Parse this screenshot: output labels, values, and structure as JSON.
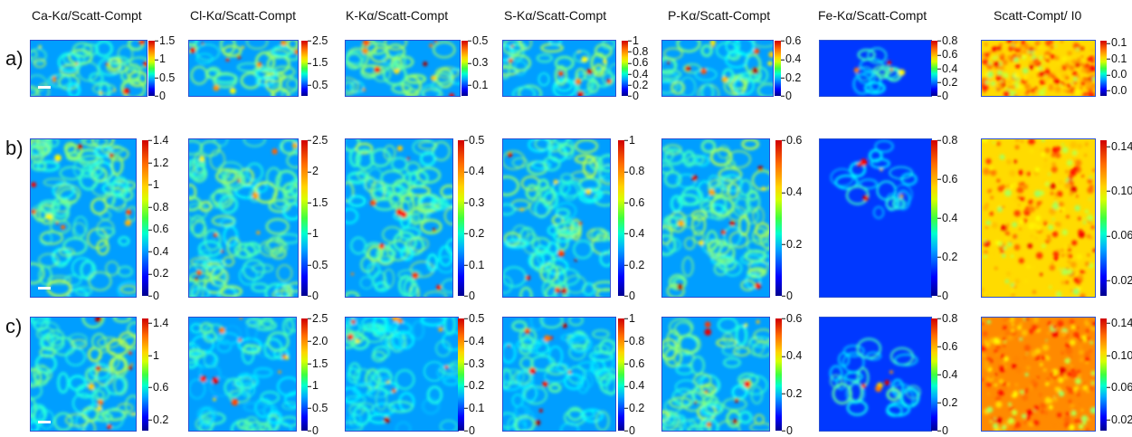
{
  "columns": [
    {
      "title": "Ca-Kα/Scatt-Compt"
    },
    {
      "title": "Cl-Kα/Scatt-Compt"
    },
    {
      "title": "K-Kα/Scatt-Compt"
    },
    {
      "title": "S-Kα/Scatt-Compt"
    },
    {
      "title": "P-Kα/Scatt-Compt"
    },
    {
      "title": "Fe-Kα/Scatt-Compt"
    },
    {
      "title": "Scatt-Compt/ I0"
    }
  ],
  "rows": [
    {
      "label": "a)"
    },
    {
      "label": "b)"
    },
    {
      "label": "c)"
    }
  ],
  "colorbars": [
    [
      [
        "1.5",
        "1",
        "0.5",
        "0"
      ],
      [
        "2.5",
        "1.5",
        "0.5"
      ],
      [
        "0.5",
        "0.3",
        "0.1"
      ],
      [
        "1",
        "0.8",
        "0.6",
        "0.4",
        "0.2",
        "0"
      ],
      [
        "0.6",
        "0.4",
        "0.2",
        "0"
      ],
      [
        "0.8",
        "0.6",
        "0.4",
        "0.2",
        "0"
      ],
      [
        "0.1",
        "0.1",
        "0.0",
        "0.0"
      ]
    ],
    [
      [
        "1.4",
        "1.2",
        "1",
        "0.8",
        "0.6",
        "0.4",
        "0.2",
        "0"
      ],
      [
        "2.5",
        "2",
        "1.5",
        "1",
        "0.5",
        "0"
      ],
      [
        "0.5",
        "0.4",
        "0.3",
        "0.2",
        "0.1",
        "0"
      ],
      [
        "1",
        "0.8",
        "0.6",
        "0.4",
        "0.2",
        "0"
      ],
      [
        "0.6",
        "0.4",
        "0.2",
        "0"
      ],
      [
        "0.8",
        "0.6",
        "0.4",
        "0.2",
        "0"
      ],
      [
        "0.14",
        "0.10",
        "0.06",
        "0.02"
      ]
    ],
    [
      [
        "1.4",
        "1",
        "0.6",
        "0.2"
      ],
      [
        "2.5",
        "2.0",
        "1.5",
        "1",
        "0.5",
        "0"
      ],
      [
        "0.5",
        "0.4",
        "0.3",
        "0.2",
        "0.1",
        "0"
      ],
      [
        "1",
        "0.8",
        "0.6",
        "0.4",
        "0.2",
        "0"
      ],
      [
        "0.6",
        "0.4",
        "0.2",
        "0"
      ],
      [
        "0.8",
        "0.6",
        "0.4",
        "0.2",
        "0"
      ],
      [
        "0.14",
        "0.10",
        "0.06",
        "0.02"
      ]
    ]
  ],
  "colormap": "jet"
}
